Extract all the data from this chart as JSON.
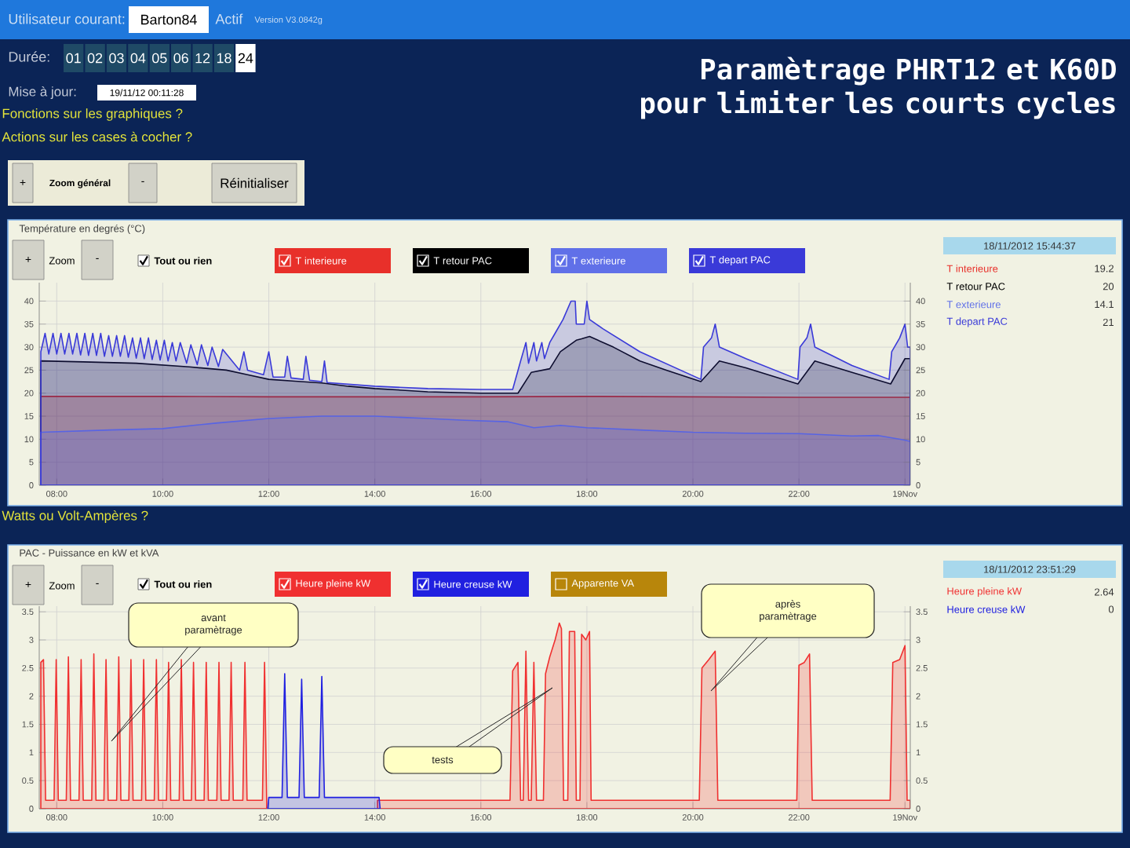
{
  "chart_data": [
    {
      "type": "area",
      "title": "Paramètrage PHRT12 et K60D pour limiter les courts cycles",
      "subtitle": "Température en degrés (°C)",
      "xlim": [
        7.67,
        24.1
      ],
      "ylim": [
        0,
        44
      ],
      "y2lim": [
        0,
        44
      ],
      "xticks": [
        {
          "value": 8,
          "label": "08:00"
        },
        {
          "value": 10,
          "label": "10:00"
        },
        {
          "value": 12,
          "label": "12:00"
        },
        {
          "value": 14,
          "label": "14:00"
        },
        {
          "value": 16,
          "label": "16:00"
        },
        {
          "value": 18,
          "label": "18:00"
        },
        {
          "value": 20,
          "label": "20:00"
        },
        {
          "value": 22,
          "label": "22:00"
        },
        {
          "value": 24,
          "label": "19Nov"
        }
      ],
      "yticks": [
        0,
        5,
        10,
        15,
        20,
        25,
        30,
        35,
        40
      ],
      "y2ticks": [
        0,
        5,
        10,
        15,
        20,
        25,
        30,
        35,
        40
      ],
      "grid": true,
      "legend": "top",
      "series": [
        {
          "name": "T interieure",
          "color": "#e8302a",
          "x": [
            7.7,
            10,
            12,
            14,
            16,
            18,
            20,
            22,
            24.1
          ],
          "values": [
            19.3,
            19.3,
            19.2,
            19.2,
            19.2,
            19.3,
            19.2,
            19.1,
            19.1
          ]
        },
        {
          "name": "T retour PAC",
          "color": "#000000",
          "x": [
            7.7,
            8.5,
            9.5,
            10.5,
            11.2,
            11.6,
            12.0,
            12.5,
            13,
            13.5,
            14,
            15,
            16,
            16.7,
            16.95,
            17.3,
            17.5,
            17.8,
            17.9,
            18.05,
            18.5,
            19,
            19.5,
            20.15,
            20.5,
            21,
            21.98,
            22.3,
            23,
            23.73,
            24.0,
            24.1
          ],
          "values": [
            27,
            26.8,
            26.5,
            25.7,
            25,
            24,
            23,
            22.6,
            22.2,
            21.5,
            21,
            20.3,
            20,
            20,
            24.5,
            25.3,
            29,
            31.5,
            31.8,
            32.3,
            30,
            27,
            25,
            22.5,
            27,
            25.5,
            22,
            27,
            24.5,
            22,
            27.5,
            27.5
          ]
        },
        {
          "name": "T exterieure",
          "color": "#6070e8",
          "x": [
            7.7,
            9,
            10,
            11,
            12,
            13,
            14,
            15,
            15.7,
            16.5,
            17,
            17.5,
            18,
            19,
            20,
            21,
            22,
            23,
            23.5,
            24,
            24.1
          ],
          "values": [
            11.5,
            12,
            12.3,
            13.5,
            14.5,
            15,
            15,
            14.5,
            14.1,
            13.8,
            12.5,
            13,
            12.5,
            12,
            11.5,
            11.3,
            11.2,
            10.7,
            10.8,
            9.8,
            9.5
          ]
        },
        {
          "name": "T depart PAC",
          "color": "#3a3ad8",
          "x": [
            7.7,
            7.78,
            7.85,
            7.93,
            8.0,
            8.08,
            8.15,
            8.23,
            8.3,
            8.38,
            8.45,
            8.53,
            8.6,
            8.68,
            8.75,
            8.83,
            8.9,
            8.98,
            9.05,
            9.13,
            9.2,
            9.28,
            9.35,
            9.43,
            9.5,
            9.58,
            9.65,
            9.73,
            9.8,
            9.88,
            9.95,
            10.03,
            10.1,
            10.18,
            10.25,
            10.33,
            10.45,
            10.53,
            10.65,
            10.73,
            10.85,
            10.93,
            11.05,
            11.13,
            11.45,
            11.53,
            11.6,
            11.9,
            12.0,
            12.08,
            12.3,
            12.35,
            12.42,
            12.65,
            12.7,
            12.77,
            13.0,
            13.05,
            13.1,
            14,
            15,
            16,
            16.6,
            16.75,
            16.85,
            16.9,
            17.0,
            17.05,
            17.15,
            17.2,
            17.3,
            17.4,
            17.55,
            17.7,
            17.78,
            17.8,
            17.95,
            18.0,
            18.05,
            18.3,
            19,
            20.15,
            20.2,
            20.35,
            20.42,
            20.5,
            21,
            21.98,
            22.02,
            22.15,
            22.22,
            22.3,
            23,
            23.7,
            23.75,
            23.9,
            24.0,
            24.05,
            24.1
          ],
          "values": [
            29,
            33,
            28.5,
            33,
            28.5,
            33,
            28.5,
            33,
            28.5,
            33,
            28.3,
            33,
            28.2,
            33,
            28.2,
            33,
            28,
            32.5,
            28,
            32.5,
            28,
            32.5,
            27.8,
            32,
            27.6,
            32,
            27.5,
            32,
            27.3,
            31.5,
            27.2,
            31.5,
            27,
            31,
            27,
            31,
            26.5,
            30.5,
            26.2,
            30.5,
            26,
            30,
            25.8,
            29.5,
            25,
            29,
            25,
            24,
            29,
            23.5,
            23.5,
            28,
            23.3,
            23,
            28,
            22.8,
            22.5,
            27,
            22.3,
            21.5,
            21,
            20.8,
            20.8,
            27,
            31,
            26.5,
            31,
            27,
            31,
            27.5,
            31,
            33,
            36,
            40,
            40,
            35,
            35,
            40,
            36,
            34,
            29,
            23,
            30,
            32,
            35,
            30,
            27.5,
            23,
            30,
            32,
            35,
            30,
            26,
            23,
            29,
            32,
            35,
            30,
            30
          ]
        }
      ],
      "annotations": [
        "Utilisateur courant:",
        "Barton84",
        "Actif",
        "Version V3.0842g",
        "Durée:",
        "01",
        "02",
        "03",
        "04",
        "05",
        "06",
        "12",
        "18",
        "24",
        "Mise à jour:",
        "19/11/12 00:11:28",
        "Fonctions sur les graphiques ?",
        "Actions sur les cases à cocher ?",
        "+",
        "Zoom général",
        "-",
        "Réinitialiser",
        "+",
        "Zoom",
        "-",
        "Tout ou rien",
        "18/11/2012 15:44:37",
        "19.2",
        "20",
        "14.1",
        "21",
        "T interieure",
        "T retour PAC",
        "T exterieure",
        "T depart PAC"
      ]
    },
    {
      "type": "area",
      "title": "PAC - Puissance en kW et kVA",
      "xlim": [
        7.67,
        24.1
      ],
      "ylim": [
        0,
        3.6
      ],
      "y2lim": [
        0,
        3.6
      ],
      "xticks": [
        {
          "value": 8,
          "label": "08:00"
        },
        {
          "value": 10,
          "label": "10:00"
        },
        {
          "value": 12,
          "label": "12:00"
        },
        {
          "value": 14,
          "label": "14:00"
        },
        {
          "value": 16,
          "label": "16:00"
        },
        {
          "value": 18,
          "label": "18:00"
        },
        {
          "value": 20,
          "label": "20:00"
        },
        {
          "value": 22,
          "label": "22:00"
        },
        {
          "value": 24,
          "label": "19Nov"
        }
      ],
      "yticks": [
        0,
        0.5,
        1,
        1.5,
        2,
        2.5,
        3,
        3.5
      ],
      "y2ticks": [
        0,
        0.5,
        1,
        1.5,
        2,
        2.5,
        3,
        3.5
      ],
      "grid": true,
      "legend": "top",
      "series": [
        {
          "name": "Heure pleine kW",
          "color": "#f03030",
          "x": [
            7.7,
            7.75,
            7.79,
            7.95,
            7.99,
            8.03,
            8.18,
            8.22,
            8.26,
            8.42,
            8.46,
            8.5,
            8.66,
            8.7,
            8.74,
            8.89,
            8.93,
            8.97,
            9.13,
            9.17,
            9.21,
            9.36,
            9.4,
            9.44,
            9.6,
            9.64,
            9.68,
            9.84,
            9.88,
            9.92,
            10.07,
            10.11,
            10.15,
            10.31,
            10.35,
            10.39,
            10.54,
            10.58,
            10.62,
            10.78,
            10.82,
            10.86,
            11.02,
            11.06,
            11.1,
            11.25,
            11.29,
            11.33,
            11.51,
            11.55,
            11.59,
            11.88,
            11.92,
            11.96,
            12.0,
            14.05,
            16.55,
            16.6,
            16.7,
            16.75,
            16.8,
            16.85,
            16.9,
            16.95,
            17.0,
            17.05,
            17.18,
            17.22,
            17.3,
            17.4,
            17.48,
            17.52,
            17.56,
            17.64,
            17.67,
            17.77,
            17.8,
            17.87,
            17.9,
            17.98,
            18.05,
            18.08,
            20.12,
            20.17,
            20.3,
            20.42,
            20.47,
            21.96,
            22.0,
            22.1,
            22.2,
            22.25,
            23.72,
            23.77,
            23.9,
            24.0,
            24.04,
            24.1
          ],
          "values": [
            2.6,
            2.65,
            0.15,
            0.15,
            2.65,
            0.15,
            0.15,
            2.7,
            0.15,
            0.15,
            2.65,
            0.15,
            0.15,
            2.75,
            0.15,
            0.15,
            2.65,
            0.15,
            0.15,
            2.7,
            0.15,
            0.15,
            2.65,
            0.15,
            0.15,
            2.65,
            0.15,
            0.15,
            2.65,
            0.15,
            0.15,
            2.6,
            0.15,
            0.15,
            2.65,
            0.15,
            0.15,
            2.6,
            0.15,
            0.15,
            2.6,
            0.15,
            0.15,
            2.6,
            0.15,
            0.15,
            2.6,
            0.15,
            0.15,
            2.6,
            0.15,
            0.15,
            2.6,
            0.15,
            null,
            0.15,
            0.15,
            2.45,
            2.6,
            0.15,
            0.15,
            2.8,
            0.15,
            0.15,
            2.6,
            0.15,
            0.15,
            2.4,
            2.7,
            3.0,
            3.3,
            3.2,
            0.15,
            0.15,
            3.15,
            3.15,
            0.15,
            0.15,
            3.1,
            3.0,
            3.15,
            0.15,
            0.15,
            2.5,
            2.65,
            2.8,
            0.15,
            0.15,
            2.55,
            2.6,
            2.75,
            0.15,
            0.15,
            2.6,
            2.65,
            2.9,
            0.15,
            0.15
          ]
        },
        {
          "name": "Heure creuse kW",
          "color": "#2020e0",
          "x": [
            11.98,
            12.0,
            12.25,
            12.3,
            12.35,
            12.57,
            12.62,
            12.67,
            12.95,
            13.0,
            13.05,
            14.08,
            14.1
          ],
          "values": [
            0,
            0.2,
            0.2,
            2.4,
            0.2,
            0.2,
            2.3,
            0.2,
            0.2,
            2.35,
            0.2,
            0.2,
            0
          ]
        }
      ],
      "annotations": [
        "Watts ou Volt-Ampères ?",
        "+",
        "Zoom",
        "-",
        "Tout ou rien",
        "Apparente VA",
        "18/11/2012 23:51:29",
        "2.64",
        "0",
        "avant paramètrage",
        "tests",
        "après paramètrage",
        "Heure pleine kW",
        "Heure creuse kW"
      ]
    }
  ]
}
